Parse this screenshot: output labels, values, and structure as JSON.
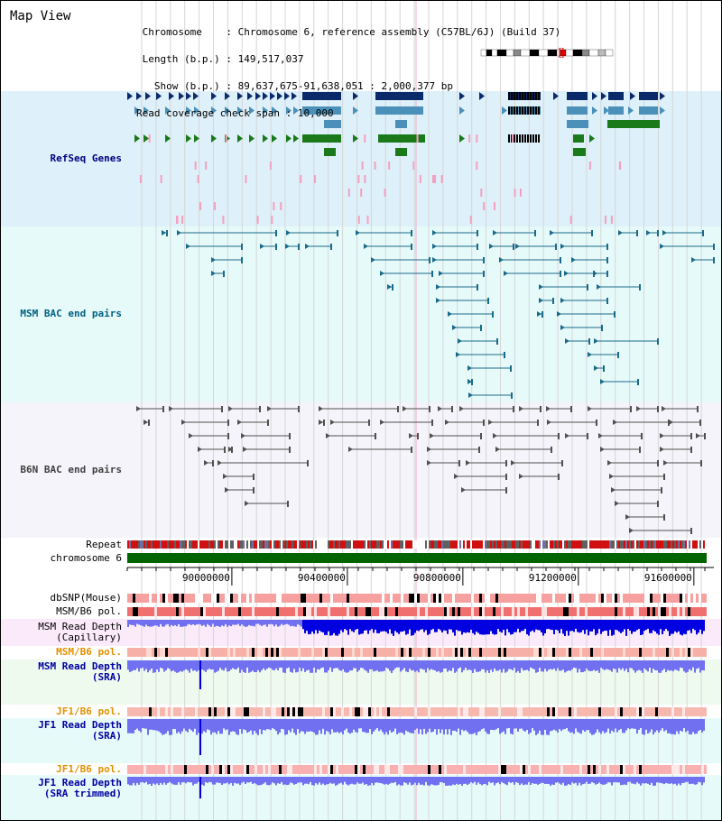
{
  "header": {
    "title": "Map View",
    "chromosome_label": "Chromosome",
    "chromosome_value": "Chromosome 6, reference assembly (C57BL/6J) (Build 37)",
    "length_label": "Length (b.p.)",
    "length_value": "149,517,037",
    "show_label": "Show (b.p.)",
    "show_value": "89,637,675-91,638,051 : 2,000,377 bp",
    "coverage_label": "Read coverage check span",
    "coverage_value": "10,000"
  },
  "tracks": {
    "refseq": {
      "label": "RefSeq Genes",
      "color": "#000080"
    },
    "msm_bac": {
      "label": "MSM BAC end pairs",
      "color": "#006080"
    },
    "b6n_bac": {
      "label": "B6N BAC end pairs",
      "color": "#404040"
    },
    "repeat": {
      "label": "Repeat"
    },
    "chromosome": {
      "label": "chromosome 6"
    },
    "dbsnp": {
      "label": "dbSNP(Mouse)"
    },
    "msm_b6_pol": {
      "label": "MSM/B6 pol."
    },
    "msm_depth_cap": {
      "label_line1": "MSM Read Depth",
      "label_line2": "(Capillary)"
    },
    "msm_b6_pol_orange": {
      "label": "MSM/B6 pol.",
      "color": "#e09000"
    },
    "msm_depth_sra": {
      "label_line1": "MSM Read Depth",
      "label_line2": "(SRA)",
      "color": "#0000a0"
    },
    "jf1_b6_pol": {
      "label": "JF1/B6 pol.",
      "color": "#e09000"
    },
    "jf1_depth_sra": {
      "label_line1": "JF1 Read Depth",
      "label_line2": "(SRA)",
      "color": "#0000a0"
    },
    "jf1_b6_pol_2": {
      "label": "JF1/B6 pol.",
      "color": "#e09000"
    },
    "jf1_depth_trim": {
      "label_line1": "JF1 Read Depth",
      "label_line2": "(SRA trimmed)",
      "color": "#0000a0"
    }
  },
  "axis": {
    "start": 89637675,
    "end": 91638051,
    "ticks": [
      "90000000",
      "90400000",
      "90800000",
      "91200000",
      "91600000"
    ],
    "tick_values": [
      90000000,
      90400000,
      90800000,
      91200000,
      91600000
    ]
  },
  "colors": {
    "refseq_bg": "#def0fa",
    "msm_bg": "#e6fafa",
    "b6n_bg": "#f4f4fa",
    "gene_navy": "#0a2a6a",
    "gene_teal": "#4a90b8",
    "gene_green": "#1a7a1a",
    "pink": "#f4a0c0",
    "chromosome_bar": "#006400",
    "depth_blue": "#7070f0",
    "depth_dark": "#0000e0"
  }
}
